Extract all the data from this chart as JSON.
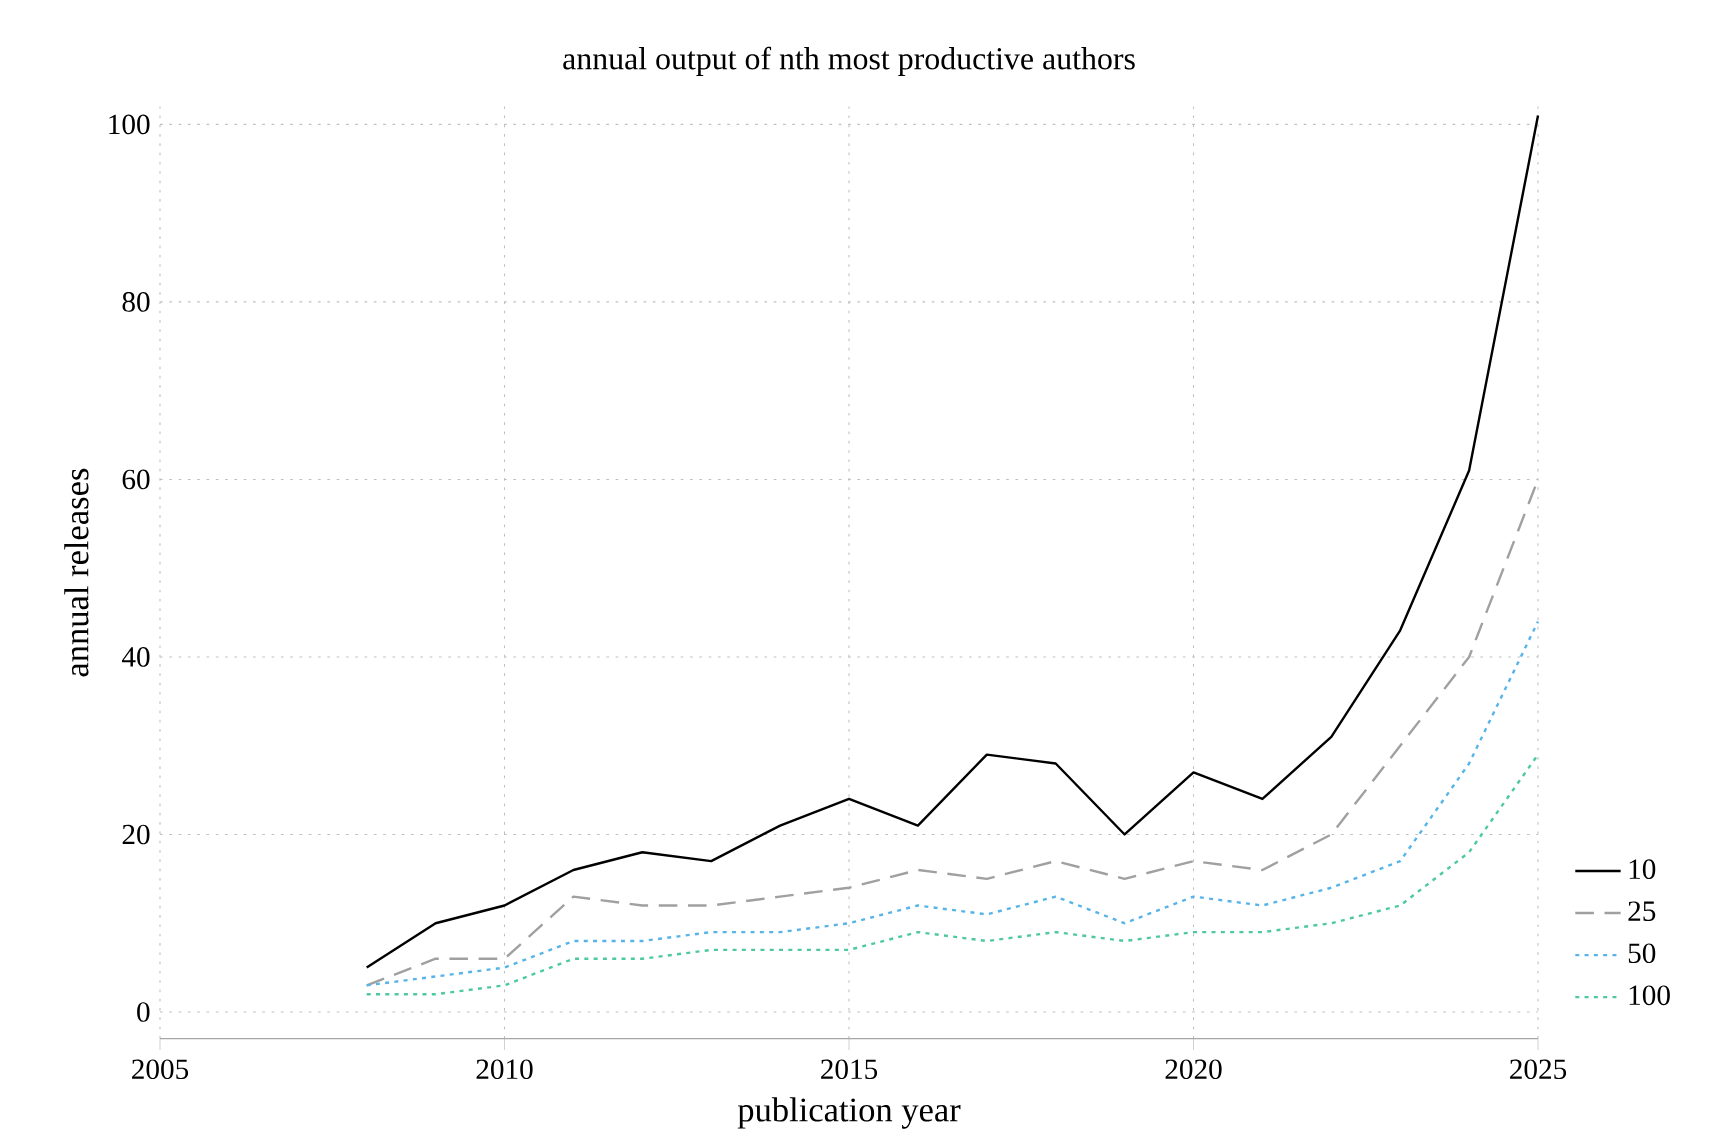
{
  "chart_data": {
    "type": "line",
    "title": "annual output of nth most productive authors",
    "xlabel": "publication year",
    "ylabel": "annual releases",
    "x": [
      2008,
      2009,
      2010,
      2011,
      2012,
      2013,
      2014,
      2015,
      2016,
      2017,
      2018,
      2019,
      2020,
      2021,
      2022,
      2023,
      2024,
      2025
    ],
    "series": [
      {
        "name": "10",
        "color": "#000000",
        "line_style": "solid",
        "values": [
          5,
          10,
          12,
          16,
          18,
          17,
          21,
          24,
          21,
          29,
          28,
          20,
          27,
          24,
          31,
          43,
          61,
          101
        ]
      },
      {
        "name": "25",
        "color": "#a0a0a0",
        "line_style": "dashed",
        "values": [
          3,
          6,
          6,
          13,
          12,
          12,
          13,
          14,
          16,
          15,
          17,
          15,
          17,
          16,
          20,
          30,
          40,
          60
        ]
      },
      {
        "name": "50",
        "color": "#56b4e9",
        "line_style": "dotted",
        "values": [
          3,
          4,
          5,
          8,
          8,
          9,
          9,
          10,
          12,
          11,
          13,
          10,
          13,
          12,
          14,
          17,
          28,
          44
        ]
      },
      {
        "name": "100",
        "color": "#4dc9a0",
        "line_style": "dotted",
        "values": [
          2,
          2,
          3,
          6,
          6,
          7,
          7,
          7,
          9,
          8,
          9,
          8,
          9,
          9,
          10,
          12,
          18,
          29
        ]
      }
    ],
    "xlim": [
      2005,
      2025
    ],
    "ylim": [
      -3,
      102
    ],
    "xticks": [
      2005,
      2010,
      2015,
      2020,
      2025
    ],
    "yticks": [
      0,
      20,
      40,
      60,
      80,
      100
    ],
    "grid": true,
    "legend": "right",
    "marker": "none"
  }
}
